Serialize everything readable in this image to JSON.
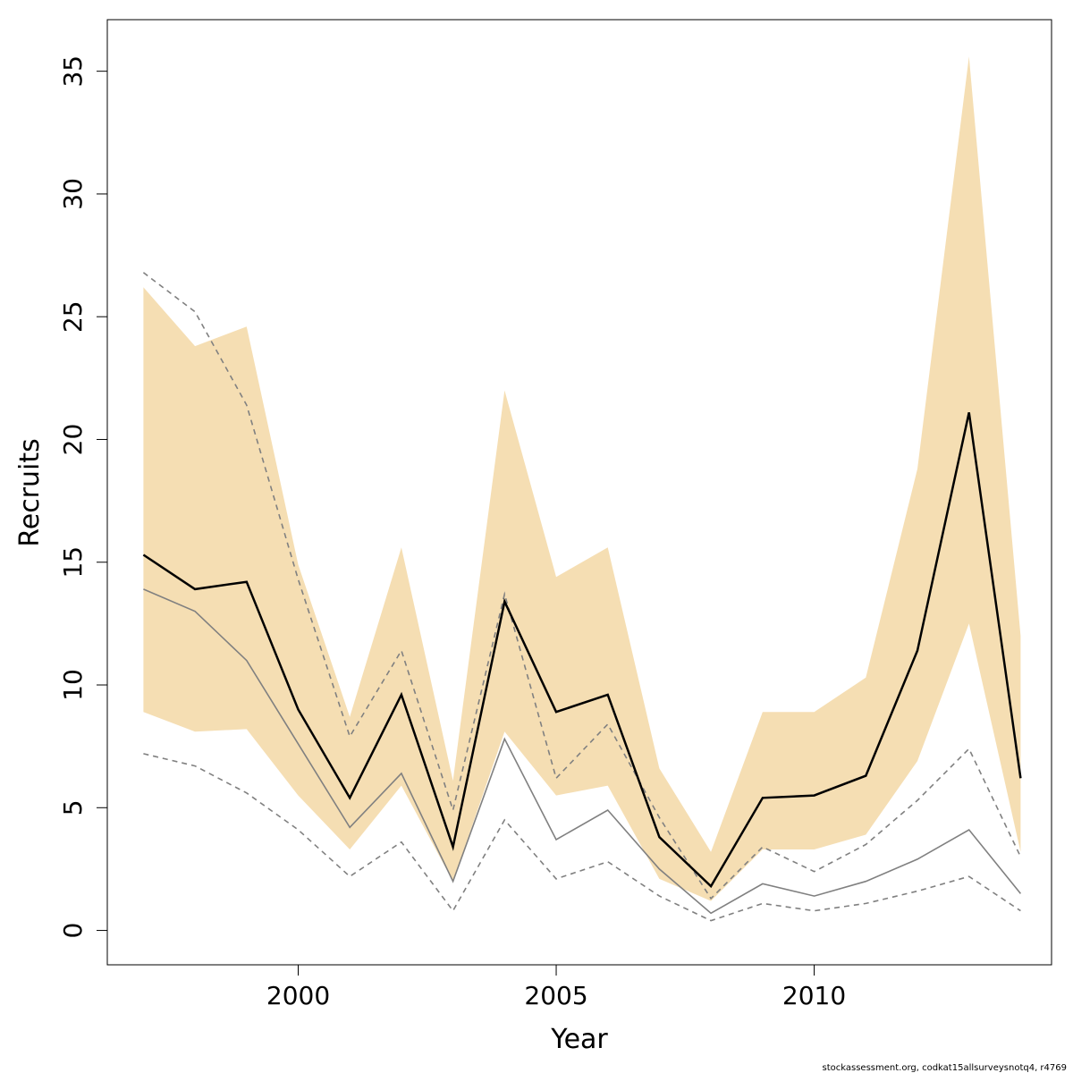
{
  "chart_data": {
    "type": "line",
    "xlabel": "Year",
    "ylabel": "Recruits",
    "xlim": [
      1996.3,
      2014.6
    ],
    "ylim": [
      -1.4,
      37.1
    ],
    "x_ticks": [
      2000,
      2005,
      2010
    ],
    "y_ticks": [
      0,
      5,
      10,
      15,
      20,
      25,
      30,
      35
    ],
    "grid": false,
    "legend": "none",
    "credit": "stockassessment.org, codkat15allsurveysnotq4, r4769",
    "x": [
      1997,
      1998,
      1999,
      2000,
      2001,
      2002,
      2003,
      2004,
      2005,
      2006,
      2007,
      2008,
      2009,
      2010,
      2011,
      2012,
      2013,
      2014
    ],
    "band": {
      "color": "#F5DEB3",
      "lower": [
        8.9,
        8.1,
        8.2,
        5.5,
        3.3,
        5.9,
        2.0,
        8.1,
        5.5,
        5.9,
        2.1,
        1.2,
        3.3,
        3.3,
        3.9,
        6.9,
        12.5,
        3.2
      ],
      "upper": [
        26.2,
        23.8,
        24.6,
        14.9,
        8.7,
        15.6,
        6.1,
        22.0,
        14.4,
        15.6,
        6.6,
        3.2,
        8.9,
        8.9,
        10.3,
        18.8,
        35.6,
        12.0
      ]
    },
    "series": [
      {
        "color": "#000000",
        "style": "solid",
        "values": [
          15.3,
          13.9,
          14.2,
          9.0,
          5.4,
          9.6,
          3.4,
          13.4,
          8.9,
          9.6,
          3.8,
          1.8,
          5.4,
          5.5,
          6.3,
          11.4,
          21.1,
          6.2
        ]
      },
      {
        "color": "#808080",
        "style": "solid",
        "values": [
          13.9,
          13.0,
          11.0,
          7.6,
          4.2,
          6.4,
          2.0,
          7.8,
          3.7,
          4.9,
          2.5,
          0.7,
          1.9,
          1.4,
          2.0,
          2.9,
          4.1,
          1.5
        ]
      },
      {
        "color": "#808080",
        "style": "dashed",
        "values": [
          26.8,
          25.2,
          21.4,
          14.3,
          7.9,
          11.4,
          4.9,
          13.7,
          6.2,
          8.4,
          4.6,
          1.3,
          3.4,
          2.4,
          3.5,
          5.3,
          7.4,
          3.0
        ]
      },
      {
        "color": "#808080",
        "style": "dashed",
        "values": [
          7.2,
          6.7,
          5.6,
          4.1,
          2.2,
          3.6,
          0.8,
          4.5,
          2.1,
          2.8,
          1.4,
          0.4,
          1.1,
          0.8,
          1.1,
          1.6,
          2.2,
          0.8
        ]
      }
    ]
  }
}
